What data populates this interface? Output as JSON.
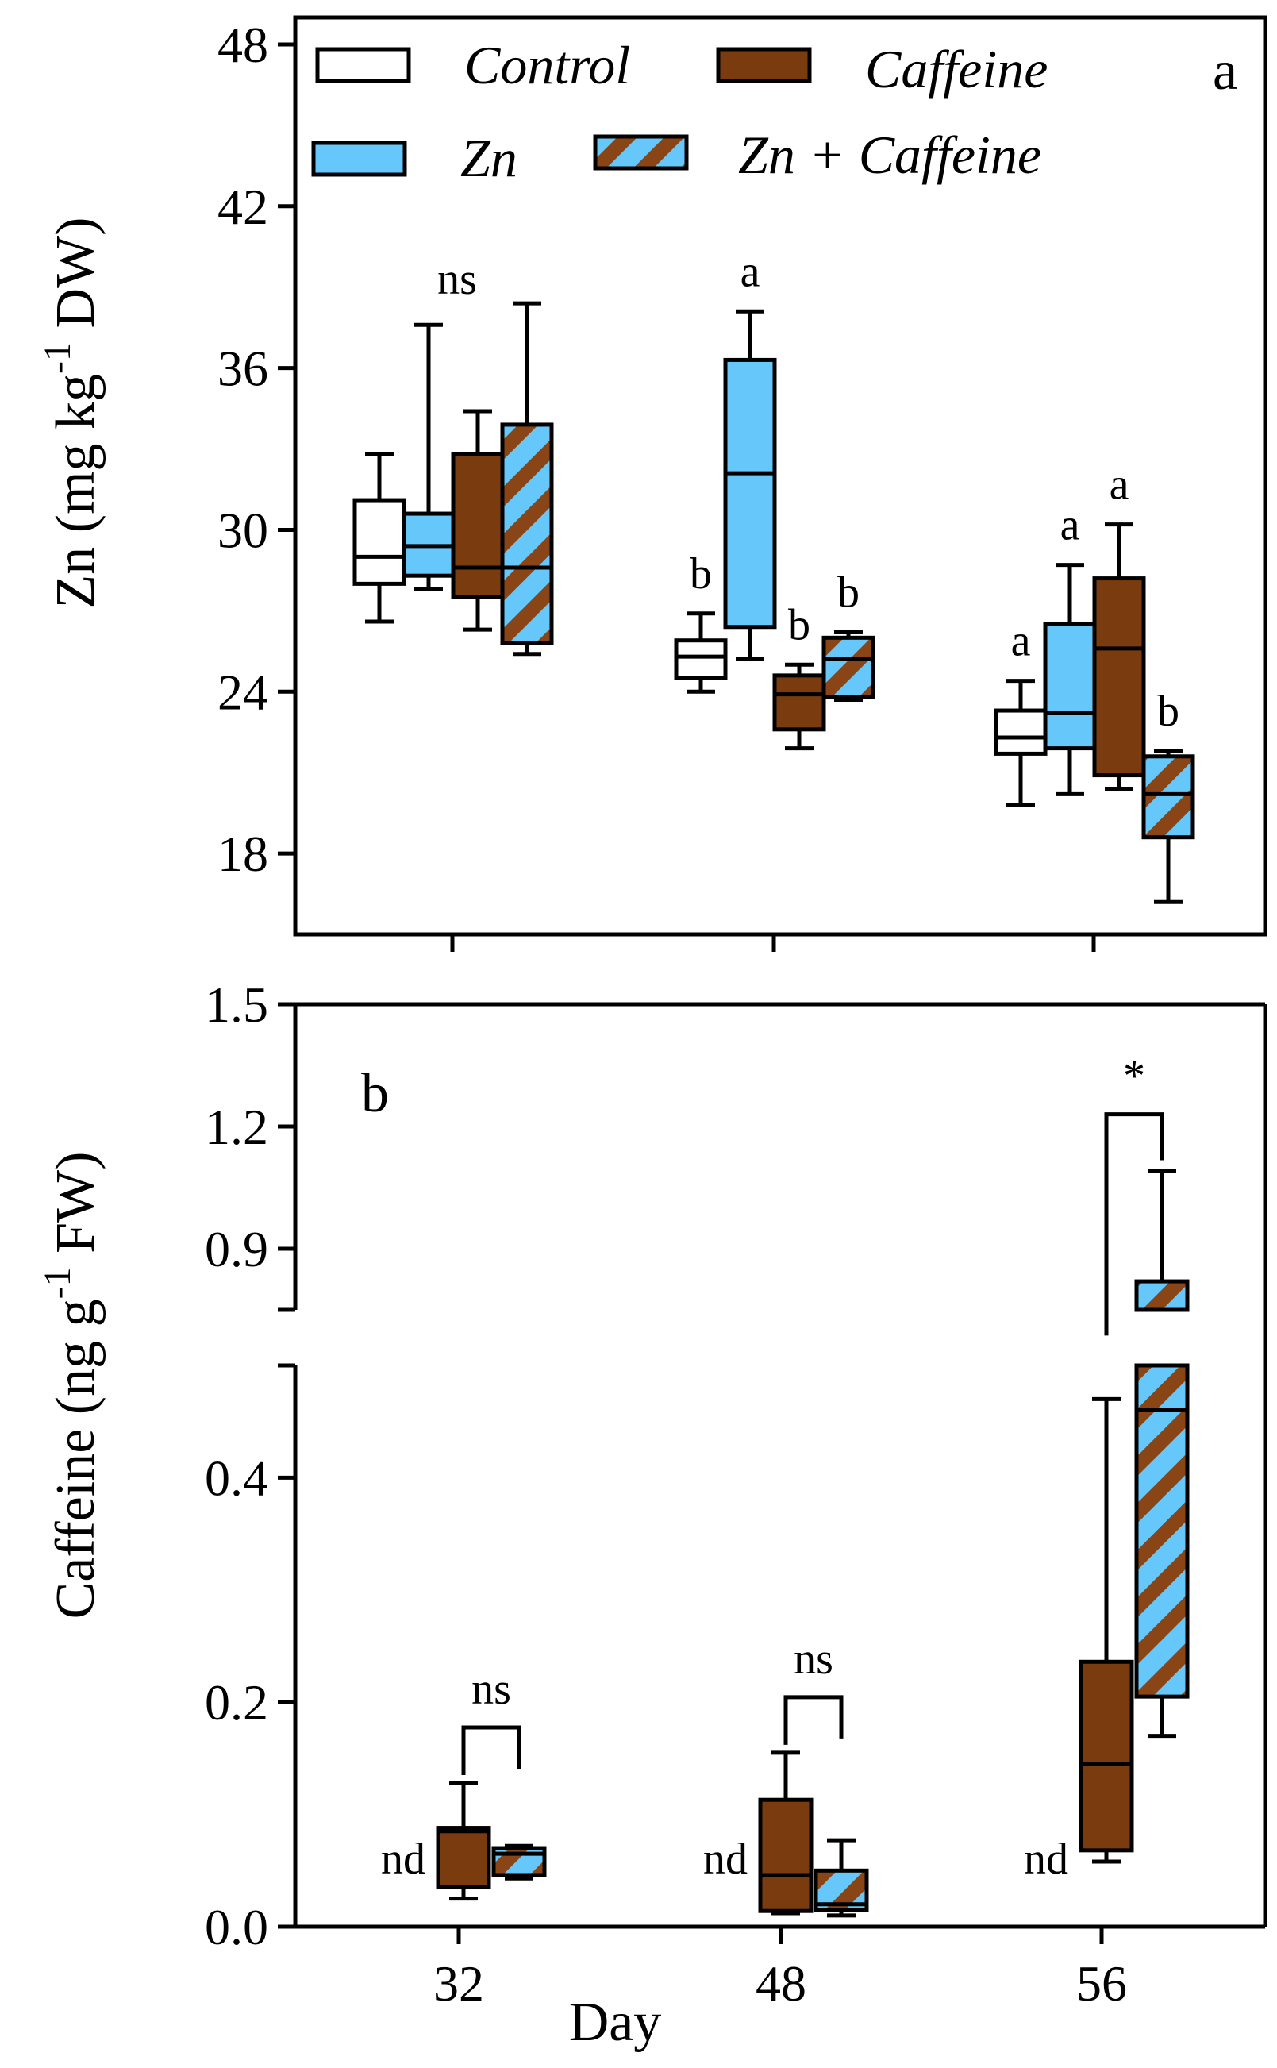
{
  "chart_data": [
    {
      "type": "box",
      "panel": "a",
      "ylabel": "Zn (mg kg-1 DW)",
      "ylabel_parts": {
        "main": "Zn (mg kg",
        "sup": "-1",
        "tail": " DW)"
      },
      "ylim": [
        15,
        49
      ],
      "yticks": [
        18,
        24,
        30,
        36,
        42,
        48
      ],
      "categories": [
        "32",
        "48",
        "56"
      ],
      "legend": [
        {
          "key": "control",
          "label": "Control"
        },
        {
          "key": "caffeine",
          "label": "Caffeine"
        },
        {
          "key": "zn",
          "label": "Zn"
        },
        {
          "key": "zncaf",
          "label": "Zn + Caffeine"
        }
      ],
      "series_colors": {
        "control": "#ffffff",
        "caffeine": "#7a3b0e",
        "zn": "#66c8fa",
        "zncaf": "#66c8fa",
        "stripe": "#8a4516"
      },
      "groups": [
        {
          "day": "32",
          "label": "ns",
          "boxes": [
            {
              "series": "control",
              "min": 26.6,
              "q1": 28.0,
              "median": 29.0,
              "q3": 31.1,
              "max": 32.8,
              "letter": ""
            },
            {
              "series": "zn",
              "min": 27.8,
              "q1": 28.3,
              "median": 29.4,
              "q3": 30.6,
              "max": 37.6,
              "letter": ""
            },
            {
              "series": "caffeine",
              "min": 26.3,
              "q1": 27.5,
              "median": 28.6,
              "q3": 32.8,
              "max": 34.4,
              "letter": ""
            },
            {
              "series": "zncaf",
              "min": 25.4,
              "q1": 25.8,
              "median": 28.6,
              "q3": 33.9,
              "max": 38.4,
              "letter": ""
            }
          ]
        },
        {
          "day": "48",
          "label": "",
          "boxes": [
            {
              "series": "control",
              "min": 24.0,
              "q1": 24.5,
              "median": 25.3,
              "q3": 25.9,
              "max": 26.9,
              "letter": "b"
            },
            {
              "series": "zn",
              "min": 25.2,
              "q1": 26.4,
              "median": 32.1,
              "q3": 36.3,
              "max": 38.1,
              "letter": "a"
            },
            {
              "series": "caffeine",
              "min": 21.9,
              "q1": 22.6,
              "median": 23.9,
              "q3": 24.6,
              "max": 25.0,
              "letter": "b"
            },
            {
              "series": "zncaf",
              "min": 23.7,
              "q1": 23.8,
              "median": 25.2,
              "q3": 26.0,
              "max": 26.2,
              "letter": "b"
            }
          ]
        },
        {
          "day": "56",
          "label": "",
          "boxes": [
            {
              "series": "control",
              "min": 19.8,
              "q1": 21.7,
              "median": 22.3,
              "q3": 23.3,
              "max": 24.4,
              "letter": "a"
            },
            {
              "series": "zn",
              "min": 20.2,
              "q1": 21.9,
              "median": 23.2,
              "q3": 26.5,
              "max": 28.7,
              "letter": "a"
            },
            {
              "series": "caffeine",
              "min": 20.4,
              "q1": 20.9,
              "median": 25.6,
              "q3": 28.2,
              "max": 30.2,
              "letter": "a"
            },
            {
              "series": "zncaf",
              "min": 16.2,
              "q1": 18.6,
              "median": 20.2,
              "q3": 21.6,
              "max": 21.8,
              "letter": "b"
            }
          ]
        }
      ]
    },
    {
      "type": "box",
      "panel": "b",
      "xlabel": "Day",
      "ylabel": "Caffeine (ng g-1 FW)",
      "ylabel_parts": {
        "main": "Caffeine (ng g",
        "sup": "-1",
        "tail": " FW)"
      },
      "broken_axis": true,
      "ylim_lower": [
        0.0,
        0.5
      ],
      "ylim_upper": [
        0.75,
        1.5
      ],
      "yticks": [
        0.0,
        0.2,
        0.4,
        0.9,
        1.2,
        1.5
      ],
      "ytick_labels": [
        "0.0",
        "0.2",
        "0.4",
        "0.9",
        "1.2",
        "1.5"
      ],
      "categories": [
        "32",
        "48",
        "56"
      ],
      "nd_label": "nd",
      "groups": [
        {
          "day": "32",
          "comparison": "ns",
          "boxes": [
            {
              "series": "caffeine",
              "min": 0.025,
              "q1": 0.035,
              "median": 0.085,
              "q3": 0.088,
              "max": 0.128
            },
            {
              "series": "zncaf",
              "min": 0.043,
              "q1": 0.046,
              "median": 0.065,
              "q3": 0.07,
              "max": 0.072
            }
          ]
        },
        {
          "day": "48",
          "comparison": "ns",
          "boxes": [
            {
              "series": "caffeine",
              "min": 0.012,
              "q1": 0.014,
              "median": 0.046,
              "q3": 0.113,
              "max": 0.155
            },
            {
              "series": "zncaf",
              "min": 0.01,
              "q1": 0.015,
              "median": 0.02,
              "q3": 0.05,
              "max": 0.077
            }
          ]
        },
        {
          "day": "56",
          "comparison": "*",
          "boxes": [
            {
              "series": "caffeine",
              "min": 0.058,
              "q1": 0.068,
              "median": 0.145,
              "q3": 0.236,
              "max": 0.47
            },
            {
              "series": "zncaf",
              "min": 0.17,
              "q1": 0.205,
              "median": 0.46,
              "q3": 0.82,
              "max": 1.09
            }
          ]
        }
      ]
    }
  ]
}
